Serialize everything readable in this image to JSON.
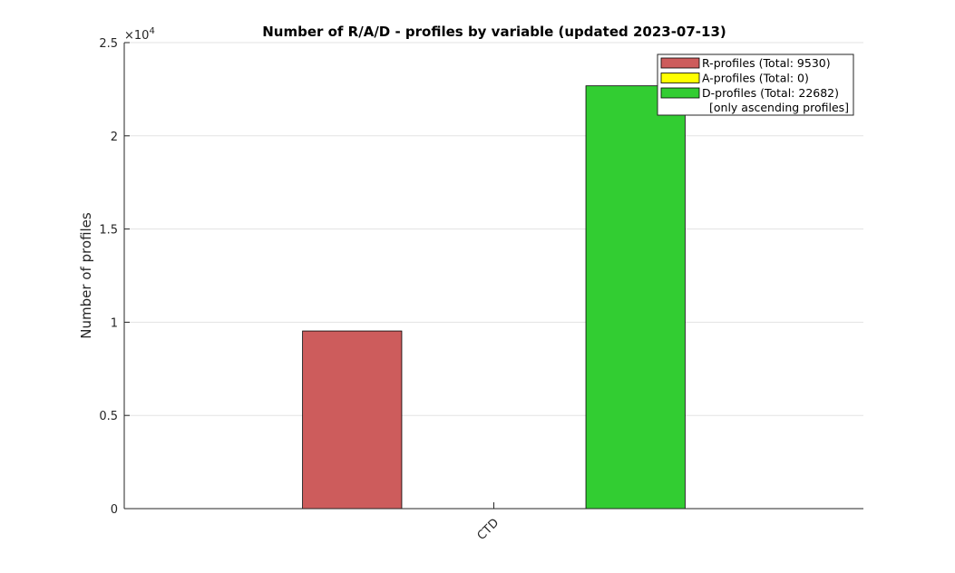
{
  "chart_data": {
    "type": "bar",
    "title": "Number of R/A/D - profiles by variable (updated 2023-07-13)",
    "ylabel": "Number of profiles",
    "xlabel": "",
    "categories": [
      "CTD"
    ],
    "ylim": [
      0,
      25000
    ],
    "yticks": [
      0,
      5000,
      10000,
      15000,
      20000,
      25000
    ],
    "ytick_labels": [
      "0",
      "0.5",
      "1",
      "1.5",
      "2",
      "2.5"
    ],
    "y_exponent_base": "×10",
    "y_exponent_power": "4",
    "grid": "horizontal",
    "legend_position": "top-right",
    "series": [
      {
        "name": "R-profiles (Total: 9530)",
        "values": [
          9530
        ],
        "color": "#cd5c5c"
      },
      {
        "name": "A-profiles (Total: 0)",
        "values": [
          0
        ],
        "color": "#ffff00"
      },
      {
        "name": "D-profiles (Total: 22682)",
        "values": [
          22682
        ],
        "color": "#32cd32"
      }
    ],
    "legend_note": "[only ascending profiles]"
  }
}
